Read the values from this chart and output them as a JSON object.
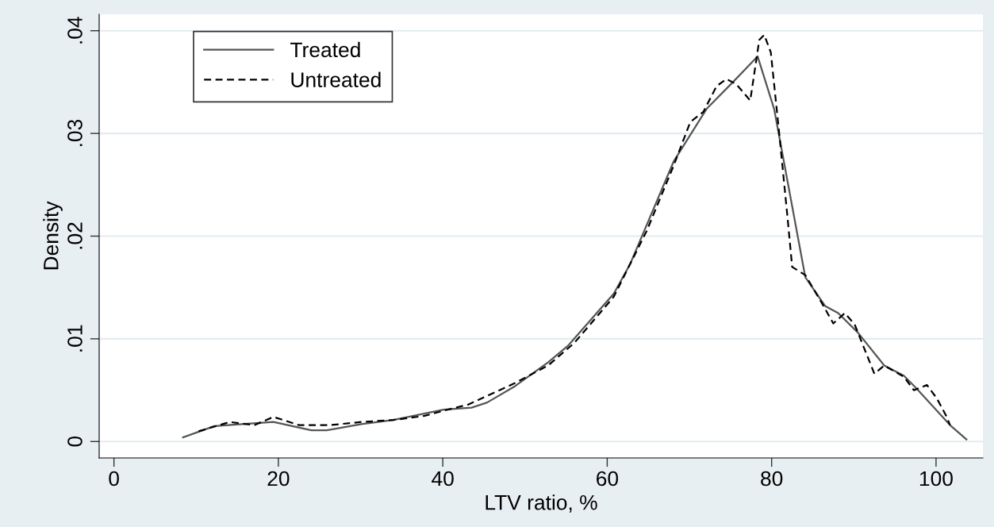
{
  "chart_data": {
    "type": "line",
    "xlabel": "LTV ratio, %",
    "ylabel": "Density",
    "xlim": [
      -1.8,
      105.7
    ],
    "ylim": [
      -0.0016,
      0.0416
    ],
    "xticks": [
      0,
      20,
      40,
      60,
      80,
      100
    ],
    "yticks": [
      0,
      {
        "value": 0.01,
        "label": ".01"
      },
      {
        "value": 0.02,
        "label": ".02"
      },
      {
        "value": 0.03,
        "label": ".03"
      },
      {
        "value": 0.04,
        "label": ".04"
      }
    ],
    "grid": "y",
    "legend": "top left",
    "series": [
      {
        "name": "Treated",
        "color": "#555555",
        "line_style": "solid",
        "x": [
          8.4,
          12.2,
          15.6,
          19.4,
          24.0,
          25.9,
          30.1,
          34.0,
          40.1,
          43.5,
          45.4,
          48.8,
          52.8,
          55.2,
          60.8,
          62.8,
          68.1,
          72.1,
          75.3,
          78.3,
          80.3,
          84.1,
          86.5,
          88.1,
          90.5,
          93.7,
          96.1,
          97.7,
          101.7,
          103.7
        ],
        "values": [
          0.0004,
          0.0015,
          0.0017,
          0.0019,
          0.0011,
          0.0011,
          0.0017,
          0.0021,
          0.0031,
          0.0033,
          0.0038,
          0.0054,
          0.0077,
          0.0093,
          0.0144,
          0.0173,
          0.0273,
          0.0324,
          0.035,
          0.0375,
          0.0324,
          0.016,
          0.0132,
          0.0125,
          0.0106,
          0.0074,
          0.0064,
          0.0051,
          0.0016,
          0.0002
        ]
      },
      {
        "name": "Untreated",
        "color": "#000000",
        "line_style": "dashed",
        "x": [
          10.3,
          14.1,
          17.1,
          19.4,
          22.5,
          26.3,
          30.1,
          34.0,
          37.8,
          40.1,
          43.1,
          48.8,
          52.8,
          56.0,
          60.8,
          64.8,
          68.1,
          70.1,
          71.7,
          73.3,
          74.5,
          75.7,
          77.4,
          78.5,
          79.1,
          79.9,
          80.9,
          81.9,
          82.5,
          84.1,
          86.1,
          87.5,
          88.9,
          90.1,
          91.3,
          92.5,
          93.7,
          96.1,
          97.3,
          98.9,
          100.1,
          101.3,
          101.7
        ],
        "values": [
          0.001,
          0.0019,
          0.0016,
          0.0024,
          0.0016,
          0.0016,
          0.0019,
          0.0021,
          0.0025,
          0.003,
          0.0036,
          0.0057,
          0.0074,
          0.0096,
          0.0141,
          0.0205,
          0.0269,
          0.0311,
          0.0321,
          0.0346,
          0.0353,
          0.0348,
          0.0332,
          0.0391,
          0.0396,
          0.0379,
          0.0302,
          0.0221,
          0.017,
          0.0162,
          0.0135,
          0.0115,
          0.0125,
          0.0114,
          0.009,
          0.0066,
          0.0074,
          0.0063,
          0.005,
          0.0055,
          0.0042,
          0.0024,
          0.0016
        ]
      }
    ]
  }
}
